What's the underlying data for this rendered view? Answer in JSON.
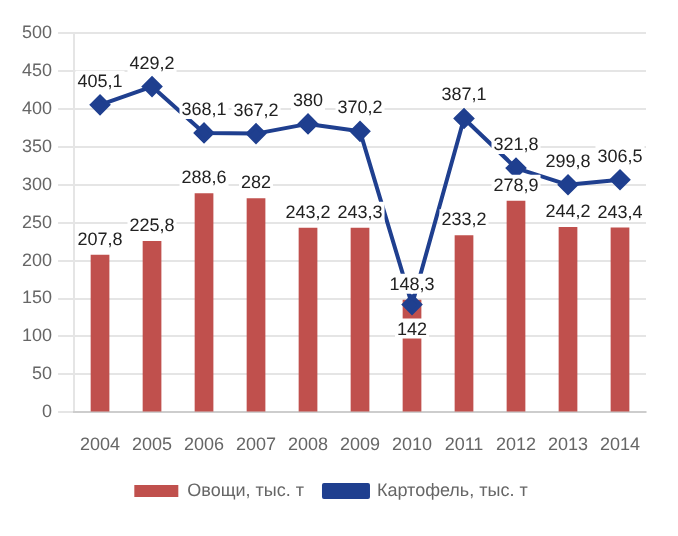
{
  "chart_data": {
    "type": "bar",
    "categories": [
      "2004",
      "2005",
      "2006",
      "2007",
      "2008",
      "2009",
      "2010",
      "2011",
      "2012",
      "2013",
      "2014"
    ],
    "series": [
      {
        "name": "Овощи, тыс. т",
        "color": "#c0504d",
        "values": [
          207.8,
          225.8,
          288.6,
          282,
          243.2,
          243.3,
          148.3,
          233.2,
          278.9,
          244.2,
          243.4
        ],
        "value_labels": [
          "207,8",
          "225,8",
          "288,6",
          "282",
          "243,2",
          "243,3",
          "148,3",
          "233,2",
          "278,9",
          "244,2",
          "243,4"
        ]
      },
      {
        "name": "Картофель, тыс. т",
        "type": "line",
        "color": "#1f3f8f",
        "marker": "diamond",
        "values": [
          405.1,
          429.2,
          368.1,
          367.2,
          380,
          370.2,
          142,
          387.1,
          321.8,
          299.8,
          306.5
        ],
        "value_labels": [
          "405,1",
          "429,2",
          "368,1",
          "367,2",
          "380",
          "370,2",
          "142",
          "387,1",
          "321,8",
          "299,8",
          "306,5"
        ]
      }
    ],
    "ylim": [
      0,
      500
    ],
    "yticks": [
      0,
      50,
      100,
      150,
      200,
      250,
      300,
      350,
      400,
      450,
      500
    ],
    "grid": "y",
    "legend": "bottom"
  }
}
